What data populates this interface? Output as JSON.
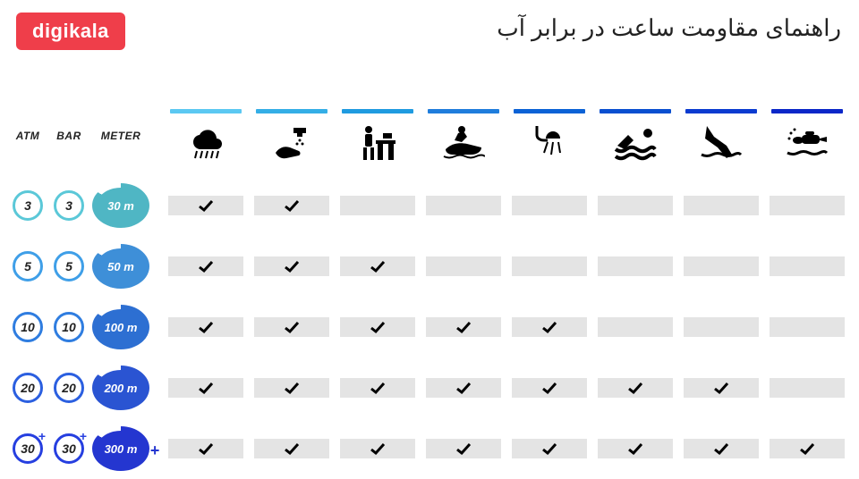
{
  "logo_text": "digikala",
  "logo_bg": "#ef3e4a",
  "title": "راهنمای مقاومت ساعت در برابر آب",
  "column_headers": {
    "atm": "ATM",
    "bar": "BAR",
    "meter": "METER"
  },
  "activities": [
    {
      "id": "rain",
      "bar_color": "#5bc8f2"
    },
    {
      "id": "wash",
      "bar_color": "#34aee6"
    },
    {
      "id": "kitchen",
      "bar_color": "#1f9be0"
    },
    {
      "id": "jetski",
      "bar_color": "#1f7ddc"
    },
    {
      "id": "shower",
      "bar_color": "#0b62d6"
    },
    {
      "id": "swim",
      "bar_color": "#0a4fd0"
    },
    {
      "id": "snorkel",
      "bar_color": "#0b3bd0"
    },
    {
      "id": "scuba",
      "bar_color": "#0b27c8"
    }
  ],
  "rows": [
    {
      "atm": "3",
      "bar": "3",
      "meter": "30 m",
      "ring_color": "#5bc8d8",
      "meter_color": "#4fb6c4",
      "plus": false,
      "checks": [
        true,
        true,
        false,
        false,
        false,
        false,
        false,
        false
      ]
    },
    {
      "atm": "5",
      "bar": "5",
      "meter": "50 m",
      "ring_color": "#3f9fe8",
      "meter_color": "#3e8fd8",
      "plus": false,
      "checks": [
        true,
        true,
        true,
        false,
        false,
        false,
        false,
        false
      ]
    },
    {
      "atm": "10",
      "bar": "10",
      "meter": "100 m",
      "ring_color": "#2f7de0",
      "meter_color": "#2d6fd2",
      "plus": false,
      "checks": [
        true,
        true,
        true,
        true,
        true,
        false,
        false,
        false
      ]
    },
    {
      "atm": "20",
      "bar": "20",
      "meter": "200 m",
      "ring_color": "#2b5fe0",
      "meter_color": "#2a54d2",
      "plus": false,
      "checks": [
        true,
        true,
        true,
        true,
        true,
        true,
        true,
        false
      ]
    },
    {
      "atm": "30",
      "bar": "30",
      "meter": "300 m",
      "ring_color": "#263fe0",
      "meter_color": "#2436d0",
      "plus": true,
      "checks": [
        true,
        true,
        true,
        true,
        true,
        true,
        true,
        true
      ]
    }
  ],
  "cell_bg": "#e4e4e4",
  "background": "#ffffff"
}
